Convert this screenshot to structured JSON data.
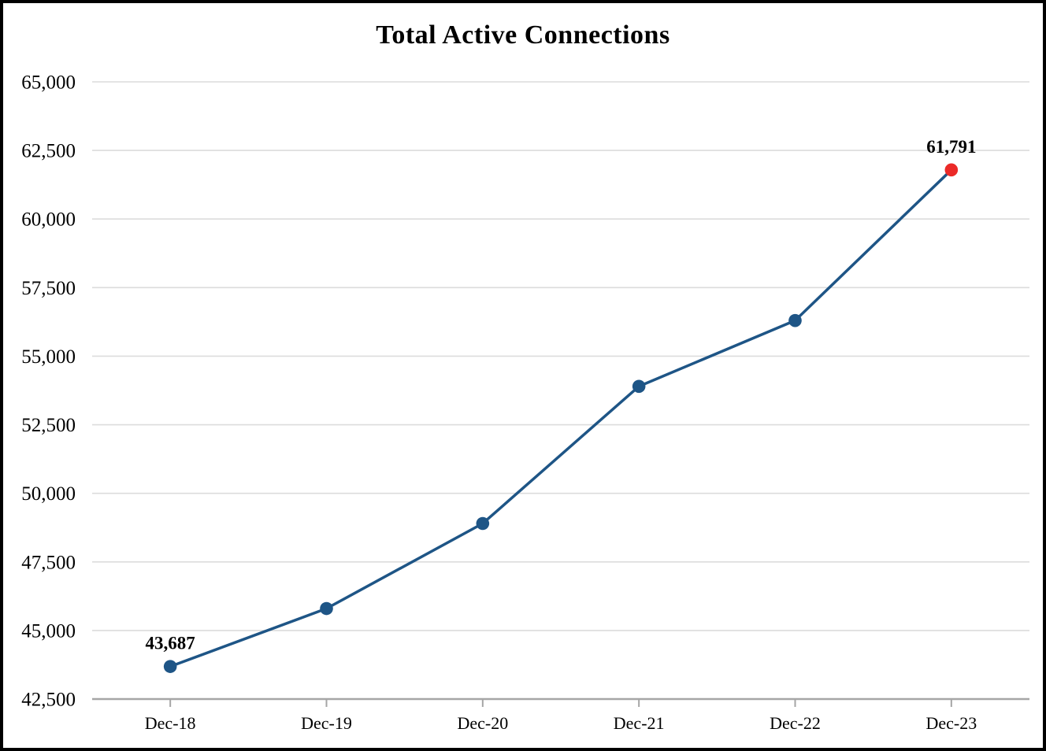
{
  "chart_data": {
    "type": "line",
    "title": "Total Active Connections",
    "categories": [
      "Dec-18",
      "Dec-19",
      "Dec-20",
      "Dec-21",
      "Dec-22",
      "Dec-23"
    ],
    "series": [
      {
        "name": "Total Active Connections",
        "values": [
          43687,
          45800,
          48900,
          53900,
          56300,
          61791
        ]
      }
    ],
    "labeled_points": [
      {
        "index": 0,
        "label": "43,687"
      },
      {
        "index": 5,
        "label": "61,791"
      }
    ],
    "y_axis": {
      "min": 42500,
      "max": 65000,
      "step": 2500,
      "tick_labels": [
        "42,500",
        "45,000",
        "47,500",
        "50,000",
        "52,500",
        "55,000",
        "57,500",
        "60,000",
        "62,500",
        "65,000"
      ]
    },
    "x_axis": {
      "label": ""
    },
    "grid": true,
    "legend_position": "none",
    "colors": {
      "line": "#1E5586",
      "marker": "#1E5586",
      "last_marker": "#EB2A28",
      "gridline": "#DCDCDC",
      "axis": "#A6A6A6",
      "title_text": "#000000",
      "background": "#FFFFFF",
      "frame_border": "#000000"
    }
  }
}
